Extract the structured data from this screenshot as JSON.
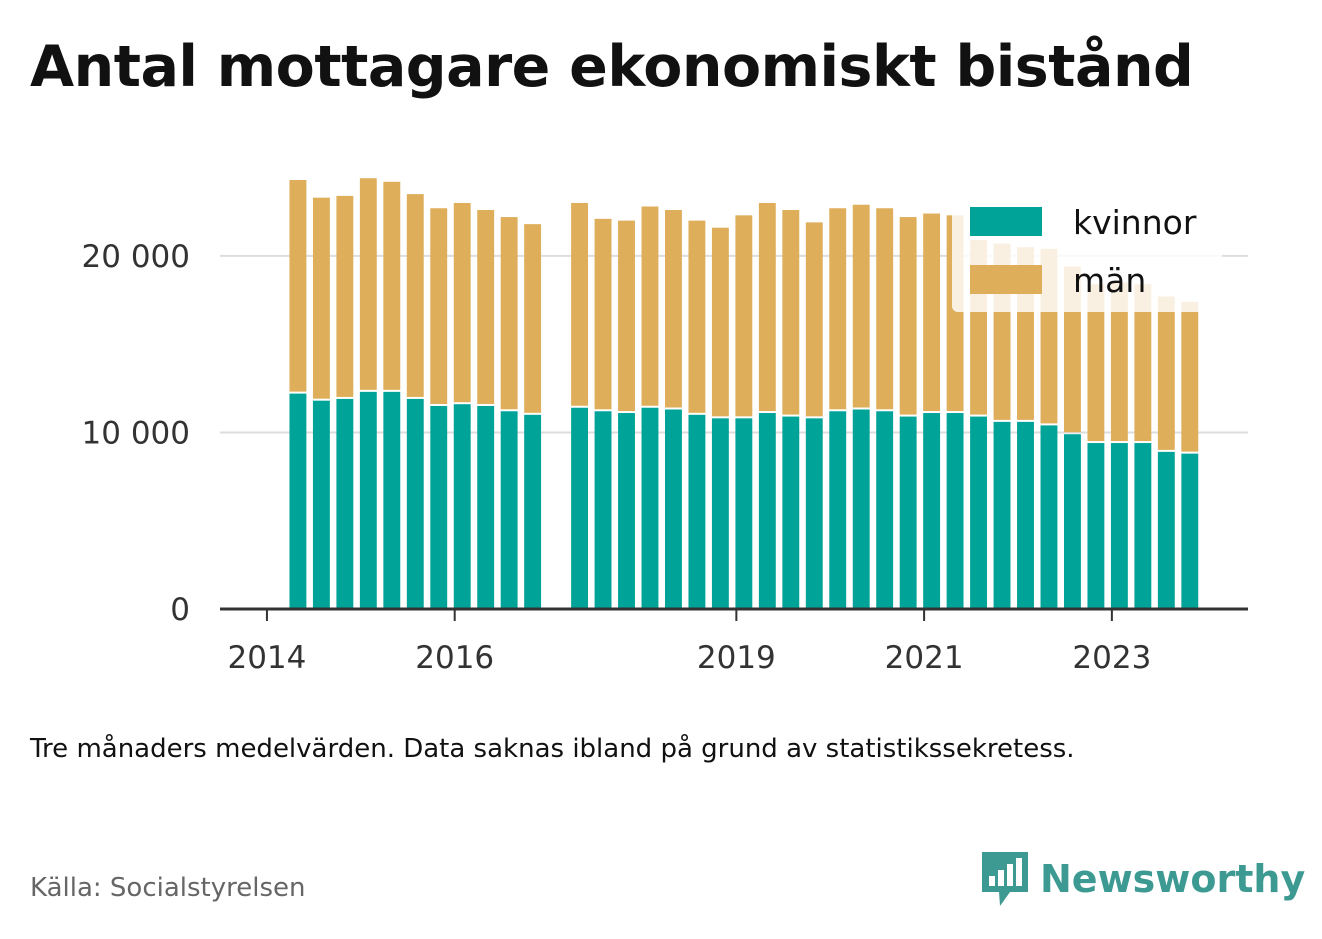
{
  "title": "Antal mottagare ekonomiskt bistånd",
  "note": "Tre månaders medelvärden. Data saknas ibland på grund av statistikssekretess.",
  "source": "Källa: Socialstyrelsen",
  "brand": {
    "name": "Newsworthy",
    "icon": "newsworthy-logo-icon",
    "color": "#3d9a93"
  },
  "colors": {
    "kvinnor": "#00a398",
    "man": "#deae5b",
    "axis": "#333333",
    "grid": "#dddddd"
  },
  "chart_data": {
    "type": "bar",
    "stacked": true,
    "x_ticks": [
      {
        "label": "2014",
        "x": 2014.0
      },
      {
        "label": "2016",
        "x": 2016.0
      },
      {
        "label": "2019",
        "x": 2019.0
      },
      {
        "label": "2021",
        "x": 2021.0
      },
      {
        "label": "2023",
        "x": 2023.0
      }
    ],
    "y_ticks": [
      {
        "label": "0",
        "value": 0
      },
      {
        "label": "10 000",
        "value": 10000
      },
      {
        "label": "20 000",
        "value": 20000
      }
    ],
    "xlim": [
      2013.5,
      2024.45
    ],
    "ylim": [
      0,
      26000
    ],
    "grid": true,
    "legend_position": "top-right",
    "x": [
      2014.33,
      2014.58,
      2014.83,
      2015.08,
      2015.33,
      2015.58,
      2015.83,
      2016.08,
      2016.33,
      2016.58,
      2016.83,
      2017.33,
      2017.58,
      2017.83,
      2018.08,
      2018.33,
      2018.58,
      2018.83,
      2019.08,
      2019.33,
      2019.58,
      2019.83,
      2020.08,
      2020.33,
      2020.58,
      2020.83,
      2021.08,
      2021.33,
      2021.58,
      2021.83,
      2022.08,
      2022.33,
      2022.58,
      2022.83,
      2023.08,
      2023.33,
      2023.58,
      2023.83
    ],
    "series": [
      {
        "name": "kvinnor",
        "values": [
          12200,
          11800,
          11900,
          12300,
          12300,
          11900,
          11500,
          11600,
          11500,
          11200,
          11000,
          11400,
          11200,
          11100,
          11400,
          11300,
          11000,
          10800,
          10800,
          11100,
          10900,
          10800,
          11200,
          11300,
          11200,
          10900,
          11100,
          11100,
          10900,
          10600,
          10600,
          10400,
          9900,
          9400,
          9400,
          9400,
          8900,
          8800
        ]
      },
      {
        "name": "män",
        "values": [
          12100,
          11500,
          11500,
          12100,
          11900,
          11600,
          11200,
          11400,
          11100,
          11000,
          10800,
          11600,
          10900,
          10900,
          11400,
          11300,
          11000,
          10800,
          11500,
          11900,
          11700,
          11100,
          11500,
          11600,
          11500,
          11300,
          11300,
          11200,
          10000,
          10100,
          9900,
          10000,
          9500,
          9000,
          9100,
          9000,
          8800,
          8600
        ]
      }
    ]
  }
}
